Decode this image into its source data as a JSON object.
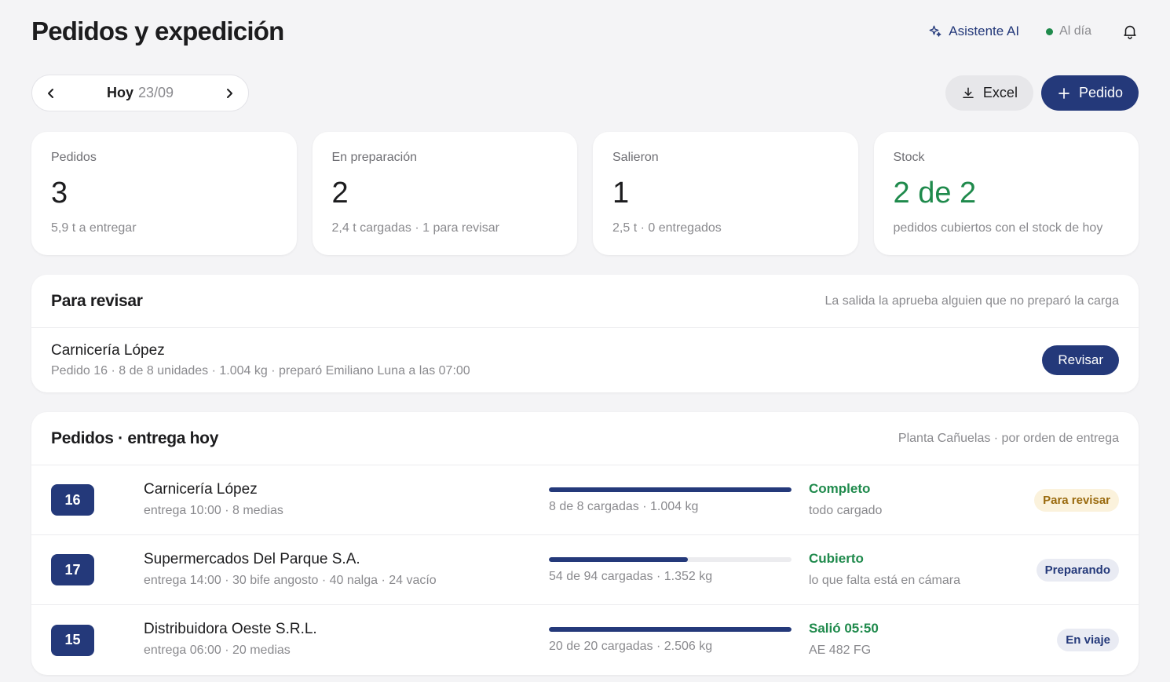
{
  "header": {
    "title": "Pedidos y expedición",
    "ai_label": "Asistente AI",
    "status_label": "Al día",
    "icons": {
      "ai": "sparkle-icon",
      "bell": "bell-icon"
    }
  },
  "date_nav": {
    "today_label": "Hoy",
    "date": "23/09"
  },
  "actions": {
    "excel_label": "Excel",
    "new_order_label": "Pedido"
  },
  "kpis": [
    {
      "label": "Pedidos",
      "value": "3",
      "sub": "5,9 t a entregar"
    },
    {
      "label": "En preparación",
      "value": "2",
      "sub": "2,4 t cargadas · 1 para revisar"
    },
    {
      "label": "Salieron",
      "value": "1",
      "sub": "2,5 t · 0 entregados"
    },
    {
      "label": "Stock",
      "value": "2 de 2",
      "sub": "pedidos cubiertos con el stock de hoy"
    }
  ],
  "review": {
    "title": "Para revisar",
    "note": "La salida la aprueba alguien que no preparó la carga",
    "item": {
      "name": "Carnicería López",
      "meta": "Pedido 16 · 8 de 8 unidades · 1.004 kg · preparó Emiliano Luna a las 07:00",
      "button": "Revisar"
    }
  },
  "orders": {
    "title": "Pedidos · entrega hoy",
    "note": "Planta Cañuelas · por orden de entrega",
    "rows": [
      {
        "number": "16",
        "name": "Carnicería López",
        "meta": "entrega 10:00 · 8 medias",
        "progress": 1.0,
        "progress_text": "8 de 8 cargadas · 1.004 kg",
        "status_title": "Completo",
        "status_sub": "todo cargado",
        "badge": "Para revisar"
      },
      {
        "number": "17",
        "name": "Supermercados Del Parque S.A.",
        "meta": "entrega 14:00 · 30 bife angosto · 40 nalga · 24 vacío",
        "progress": 0.574,
        "progress_text": "54 de 94 cargadas · 1.352 kg",
        "status_title": "Cubierto",
        "status_sub": "lo que falta está en cámara",
        "badge": "Preparando"
      },
      {
        "number": "15",
        "name": "Distribuidora Oeste S.R.L.",
        "meta": "entrega 06:00 · 20 medias",
        "progress": 1.0,
        "progress_text": "20 de 20 cargadas · 2.506 kg",
        "status_title": "Salió 05:50",
        "status_sub": "AE 482 FG",
        "badge": "En viaje"
      }
    ]
  },
  "colors": {
    "accent": "#24397a",
    "success": "#1f8a4c",
    "amber_badge_bg": "#fbf2dc",
    "amber_badge_text": "#9a6a0e"
  }
}
